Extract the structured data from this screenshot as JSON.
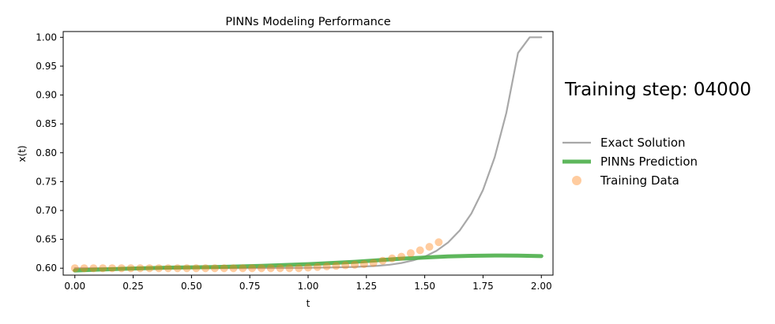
{
  "chart_data": {
    "type": "line",
    "title": "PINNs Modeling Performance",
    "xlabel": "t",
    "ylabel": "x(t)",
    "xlim": [
      -0.05,
      2.05
    ],
    "ylim": [
      0.588,
      1.01
    ],
    "x_ticks": [
      "0.00",
      "0.25",
      "0.50",
      "0.75",
      "1.00",
      "1.25",
      "1.50",
      "1.75",
      "2.00"
    ],
    "y_ticks": [
      "0.60",
      "0.65",
      "0.70",
      "0.75",
      "0.80",
      "0.85",
      "0.90",
      "0.95",
      "1.00"
    ],
    "grid": false,
    "legend_position": "right",
    "side_annotation": "Training step: 04000",
    "series": [
      {
        "name": "Exact Solution",
        "kind": "line",
        "color": "#999999",
        "x": [
          0.0,
          0.1,
          0.2,
          0.3,
          0.4,
          0.5,
          0.6,
          0.7,
          0.8,
          0.9,
          1.0,
          1.1,
          1.2,
          1.3,
          1.35,
          1.4,
          1.45,
          1.5,
          1.55,
          1.6,
          1.65,
          1.7,
          1.75,
          1.8,
          1.85,
          1.9,
          1.95,
          2.0
        ],
        "y": [
          0.6,
          0.6,
          0.6,
          0.6,
          0.6,
          0.6,
          0.6001,
          0.6001,
          0.6002,
          0.6004,
          0.6007,
          0.6012,
          0.6022,
          0.6042,
          0.606,
          0.609,
          0.6135,
          0.62,
          0.63,
          0.6445,
          0.6653,
          0.6947,
          0.7357,
          0.7922,
          0.8692,
          0.9729,
          1.0,
          1.0
        ]
      },
      {
        "name": "PINNs Prediction",
        "kind": "line",
        "color": "#4daf4a",
        "x": [
          0.0,
          0.2,
          0.4,
          0.6,
          0.8,
          1.0,
          1.2,
          1.4,
          1.6,
          1.7,
          1.8,
          1.9,
          2.0
        ],
        "y": [
          0.596,
          0.599,
          0.601,
          0.602,
          0.604,
          0.607,
          0.611,
          0.6165,
          0.6205,
          0.6215,
          0.622,
          0.6218,
          0.621
        ]
      },
      {
        "name": "Training Data",
        "kind": "scatter",
        "color": "#ff7f0e",
        "x": [
          0.0,
          0.04,
          0.08,
          0.12,
          0.16,
          0.2,
          0.24,
          0.28,
          0.32,
          0.36,
          0.4,
          0.44,
          0.48,
          0.52,
          0.56,
          0.6,
          0.64,
          0.68,
          0.72,
          0.76,
          0.8,
          0.84,
          0.88,
          0.92,
          0.96,
          1.0,
          1.04,
          1.08,
          1.12,
          1.16,
          1.2,
          1.24,
          1.28,
          1.32,
          1.36,
          1.4,
          1.44,
          1.48,
          1.52,
          1.56
        ],
        "y": [
          0.6,
          0.6,
          0.6,
          0.6,
          0.6,
          0.6,
          0.6,
          0.6,
          0.6,
          0.6,
          0.6,
          0.6,
          0.6,
          0.6,
          0.6,
          0.6,
          0.6,
          0.6,
          0.6,
          0.6,
          0.6,
          0.6,
          0.6,
          0.6,
          0.6,
          0.601,
          0.602,
          0.603,
          0.604,
          0.605,
          0.606,
          0.607,
          0.609,
          0.613,
          0.617,
          0.62,
          0.626,
          0.631,
          0.637,
          0.645
        ]
      }
    ]
  }
}
